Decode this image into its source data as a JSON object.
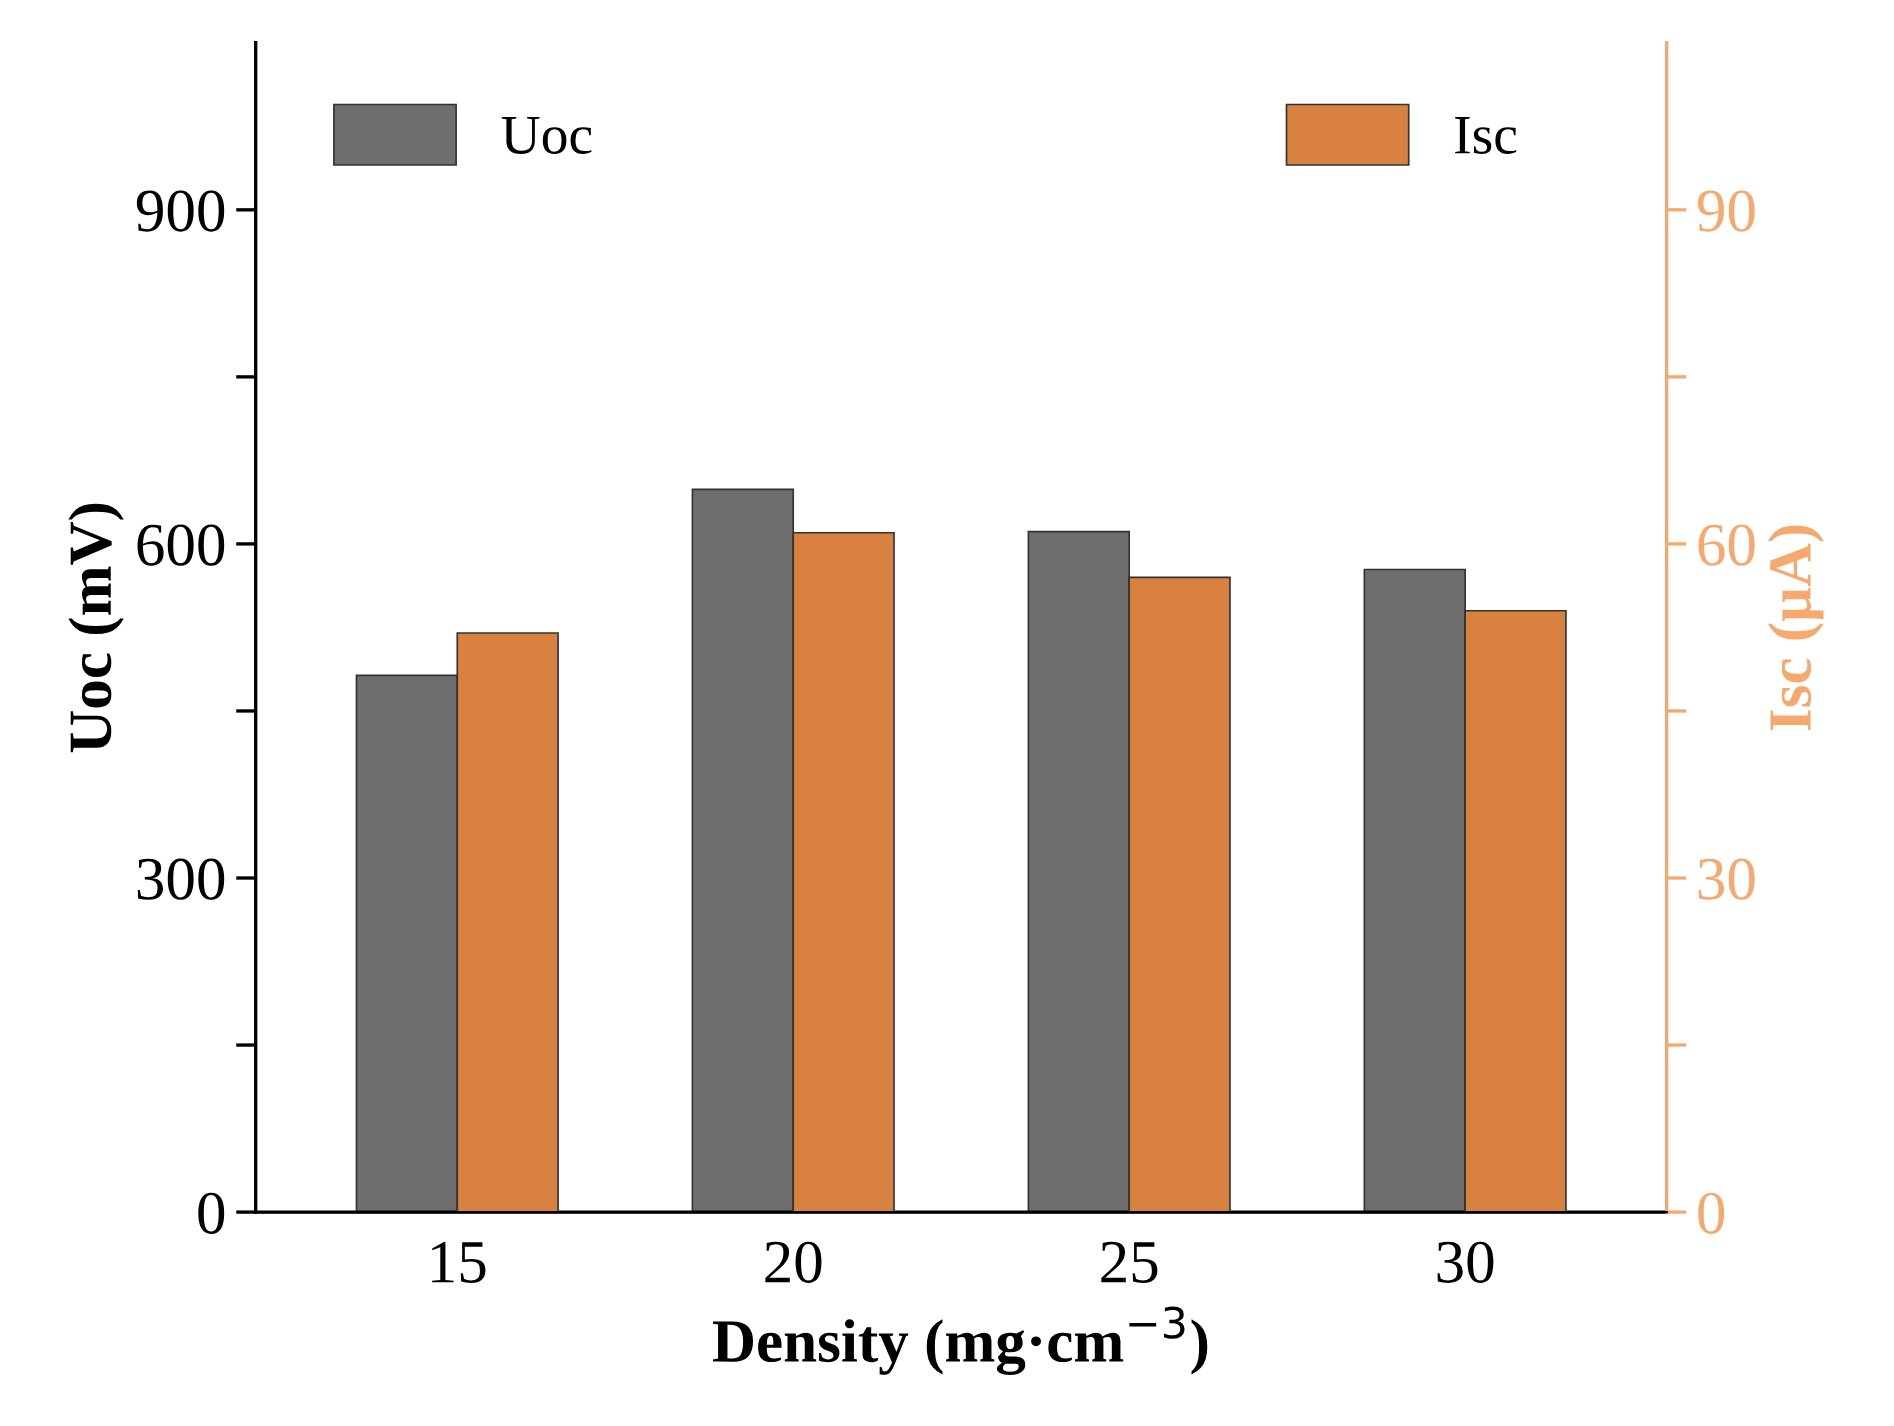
{
  "chart_data": {
    "type": "bar",
    "xlabel": "Density (mg·cm$^{−3}$)",
    "ylabel": "Uoc (mV)",
    "y2label": "Isc (μA)",
    "categories": [
      "15",
      "20",
      "25",
      "30"
    ],
    "series": [
      {
        "name": "Uoc",
        "color": "#6e6e6e",
        "values": [
          482,
          649,
          611,
          577
        ]
      },
      {
        "name": "Isc",
        "color": "#d9823f",
        "values": [
          52,
          61,
          57,
          54
        ],
        "axis": "y2"
      }
    ],
    "ylim": [
      0,
      1050
    ],
    "yticks": [
      0,
      {
        "value": 150,
        "label": null
      },
      300,
      {
        "value": 450,
        "label": null
      },
      600,
      {
        "value": 750,
        "label": null
      },
      900
    ],
    "y2lim": [
      0,
      105
    ],
    "y2ticks": [
      0,
      {
        "value": 15,
        "label": null
      },
      30,
      {
        "value": 45,
        "label": null
      },
      60,
      {
        "value": 75,
        "label": null
      },
      90
    ],
    "legend": "top",
    "grid": false
  }
}
